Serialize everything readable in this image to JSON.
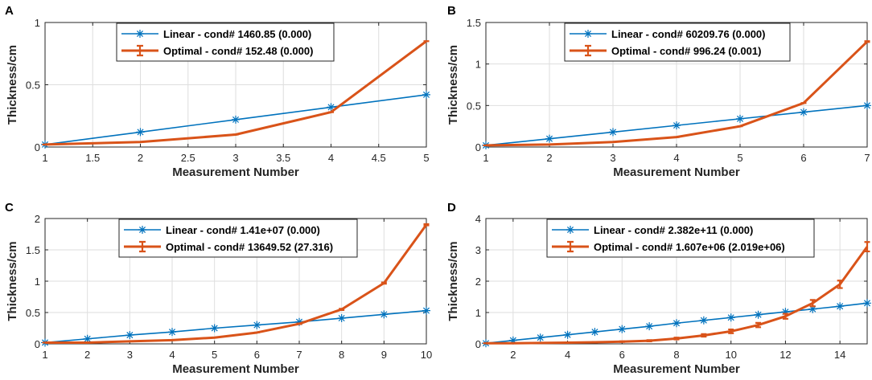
{
  "chart_data": [
    {
      "panel": "A",
      "type": "line",
      "xlabel": "Measurement Number",
      "ylabel": "Thickness/cm",
      "xlim": [
        1,
        5
      ],
      "ylim": [
        0,
        1
      ],
      "xticks": [
        1,
        1.5,
        2,
        2.5,
        3,
        3.5,
        4,
        4.5,
        5
      ],
      "xtick_labels": [
        "1",
        "1.5",
        "2",
        "2.5",
        "3",
        "3.5",
        "4",
        "4.5",
        "5"
      ],
      "yticks": [
        0,
        0.5,
        1
      ],
      "ytick_labels": [
        "0",
        "0.5",
        "1"
      ],
      "grid": true,
      "legend_position": "top-center",
      "series": [
        {
          "name": "Linear - cond# 1460.85 (0.000)",
          "color": "#0072BD",
          "marker": "asterisk",
          "x": [
            1,
            2,
            3,
            4,
            5
          ],
          "values": [
            0.02,
            0.12,
            0.22,
            0.32,
            0.42
          ]
        },
        {
          "name": "Optimal - cond# 152.48 (0.000)",
          "color": "#D95319",
          "marker": "errorbar",
          "x": [
            1,
            2,
            3,
            4,
            5
          ],
          "values": [
            0.02,
            0.04,
            0.1,
            0.28,
            0.85
          ],
          "errors": [
            0,
            0,
            0,
            0,
            0
          ]
        }
      ]
    },
    {
      "panel": "B",
      "type": "line",
      "xlabel": "Measurement Number",
      "ylabel": "Thickness/cm",
      "xlim": [
        1,
        7
      ],
      "ylim": [
        0,
        1.5
      ],
      "xticks": [
        1,
        2,
        3,
        4,
        5,
        6,
        7
      ],
      "xtick_labels": [
        "1",
        "2",
        "3",
        "4",
        "5",
        "6",
        "7"
      ],
      "yticks": [
        0,
        0.5,
        1,
        1.5
      ],
      "ytick_labels": [
        "0",
        "0.5",
        "1",
        "1.5"
      ],
      "grid": true,
      "legend_position": "top-center",
      "series": [
        {
          "name": "Linear - cond# 60209.76 (0.000)",
          "color": "#0072BD",
          "marker": "asterisk",
          "x": [
            1,
            2,
            3,
            4,
            5,
            6,
            7
          ],
          "values": [
            0.02,
            0.1,
            0.18,
            0.26,
            0.34,
            0.42,
            0.5
          ]
        },
        {
          "name": "Optimal - cond# 996.24 (0.001)",
          "color": "#D95319",
          "marker": "errorbar",
          "x": [
            1,
            2,
            3,
            4,
            5,
            6,
            7
          ],
          "values": [
            0.02,
            0.03,
            0.06,
            0.12,
            0.25,
            0.53,
            1.27
          ],
          "errors": [
            0,
            0,
            0,
            0,
            0,
            0,
            0.005
          ]
        }
      ]
    },
    {
      "panel": "C",
      "type": "line",
      "xlabel": "Measurement Number",
      "ylabel": "Thickness/cm",
      "xlim": [
        1,
        10
      ],
      "ylim": [
        0,
        2
      ],
      "xticks": [
        1,
        2,
        3,
        4,
        5,
        6,
        7,
        8,
        9,
        10
      ],
      "xtick_labels": [
        "1",
        "2",
        "3",
        "4",
        "5",
        "6",
        "7",
        "8",
        "9",
        "10"
      ],
      "yticks": [
        0,
        0.5,
        1,
        1.5,
        2
      ],
      "ytick_labels": [
        "0",
        "0.5",
        "1",
        "1.5",
        "2"
      ],
      "grid": true,
      "legend_position": "top-center",
      "series": [
        {
          "name": "Linear - cond# 1.41e+07 (0.000)",
          "color": "#0072BD",
          "marker": "asterisk",
          "x": [
            1,
            2,
            3,
            4,
            5,
            6,
            7,
            8,
            9,
            10
          ],
          "values": [
            0.02,
            0.08,
            0.14,
            0.19,
            0.25,
            0.3,
            0.35,
            0.41,
            0.47,
            0.53
          ]
        },
        {
          "name": "Optimal - cond# 13649.52 (27.316)",
          "color": "#D95319",
          "marker": "errorbar",
          "x": [
            1,
            2,
            3,
            4,
            5,
            6,
            7,
            8,
            9,
            10
          ],
          "values": [
            0.02,
            0.02,
            0.04,
            0.06,
            0.1,
            0.18,
            0.32,
            0.55,
            0.97,
            1.9
          ],
          "errors": [
            0,
            0,
            0,
            0,
            0,
            0,
            0.005,
            0.01,
            0.01,
            0.01
          ]
        }
      ]
    },
    {
      "panel": "D",
      "type": "line",
      "xlabel": "Measurement Number",
      "ylabel": "Thickness/cm",
      "xlim": [
        1,
        15
      ],
      "ylim": [
        0,
        4
      ],
      "xticks": [
        2,
        4,
        6,
        8,
        10,
        12,
        14
      ],
      "xtick_labels": [
        "2",
        "4",
        "6",
        "8",
        "10",
        "12",
        "14"
      ],
      "yticks": [
        0,
        1,
        2,
        3,
        4
      ],
      "ytick_labels": [
        "0",
        "1",
        "2",
        "3",
        "4"
      ],
      "grid": true,
      "legend_position": "top-center",
      "series": [
        {
          "name": "Linear - cond# 2.382e+11 (0.000)",
          "color": "#0072BD",
          "marker": "asterisk",
          "x": [
            1,
            2,
            3,
            4,
            5,
            6,
            7,
            8,
            9,
            10,
            11,
            12,
            13,
            14,
            15
          ],
          "values": [
            0.02,
            0.11,
            0.2,
            0.29,
            0.38,
            0.47,
            0.56,
            0.66,
            0.75,
            0.84,
            0.93,
            1.02,
            1.11,
            1.2,
            1.3
          ]
        },
        {
          "name": "Optimal - cond# 1.607e+06 (2.019e+06)",
          "color": "#D95319",
          "marker": "errorbar",
          "x": [
            1,
            2,
            3,
            4,
            5,
            6,
            7,
            8,
            9,
            10,
            11,
            12,
            13,
            14,
            15
          ],
          "values": [
            0.02,
            0.02,
            0.03,
            0.04,
            0.05,
            0.07,
            0.1,
            0.17,
            0.27,
            0.4,
            0.6,
            0.88,
            1.3,
            1.9,
            3.1
          ],
          "errors": [
            0,
            0,
            0,
            0,
            0.01,
            0.01,
            0.02,
            0.03,
            0.04,
            0.06,
            0.07,
            0.08,
            0.1,
            0.12,
            0.15
          ]
        }
      ]
    }
  ]
}
